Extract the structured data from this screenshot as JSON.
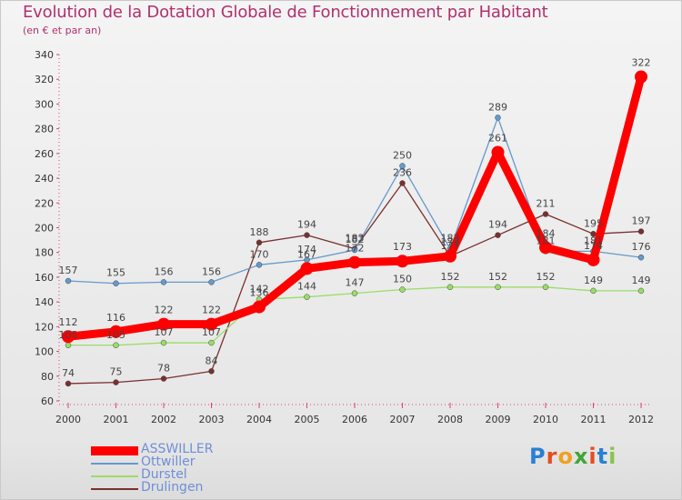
{
  "header": {
    "title": "Evolution de la Dotation Globale de Fonctionnement par Habitant",
    "subtitle": "(en € et par an)"
  },
  "chart_data": {
    "type": "line",
    "title": "Evolution de la Dotation Globale de Fonctionnement par Habitant",
    "subtitle": "(en € et par an)",
    "xlabel": "",
    "ylabel": "",
    "ylim": [
      60,
      340
    ],
    "yticks": [
      60,
      80,
      100,
      120,
      140,
      160,
      180,
      200,
      220,
      240,
      260,
      280,
      300,
      320,
      340
    ],
    "grid": false,
    "legend_position": "bottom-left",
    "categories": [
      "2000",
      "2001",
      "2002",
      "2003",
      "2004",
      "2005",
      "2006",
      "2007",
      "2008",
      "2009",
      "2010",
      "2011",
      "2012"
    ],
    "series": [
      {
        "name": "ASSWILLER",
        "color": "#ff0000",
        "values": [
          112,
          116,
          122,
          122,
          136,
          167,
          172,
          173,
          177,
          261,
          184,
          174,
          322
        ]
      },
      {
        "name": "Ottwiller",
        "color": "#6699cc",
        "values": [
          157,
          155,
          156,
          156,
          170,
          174,
          182,
          250,
          183,
          289,
          181,
          181,
          176
        ]
      },
      {
        "name": "Durstel",
        "color": "#99dd66",
        "values": [
          105,
          105,
          107,
          107,
          142,
          144,
          147,
          150,
          152,
          152,
          152,
          149,
          149
        ]
      },
      {
        "name": "Drulingen",
        "color": "#7a2f2f",
        "values": [
          74,
          75,
          78,
          84,
          188,
          194,
          183,
          236,
          177,
          194,
          211,
          195,
          197
        ]
      }
    ],
    "data_labels": {
      "ASSWILLER": [
        "112",
        "116",
        "122",
        "122",
        "136",
        "167",
        "172",
        "173",
        "177",
        "261",
        "184",
        "174",
        "322"
      ],
      "Ottwiller": [
        "157",
        "155",
        "156",
        "156",
        "170",
        "174",
        "182",
        "250",
        "183",
        "289",
        "181",
        "181",
        "176"
      ],
      "Durstel": [
        "105",
        "105",
        "107",
        "107",
        "142",
        "144",
        "147",
        "150",
        "152",
        "152",
        "152",
        "149",
        "149"
      ],
      "Drulingen": [
        "74",
        "75",
        "78",
        "84",
        "188",
        "194",
        "183",
        "236",
        "177",
        "194",
        "211",
        "195",
        "197"
      ]
    }
  },
  "legend": {
    "items": [
      {
        "label": "ASSWILLER",
        "color": "#ff0000"
      },
      {
        "label": "Ottwiller",
        "color": "#6699cc"
      },
      {
        "label": "Durstel",
        "color": "#99dd66"
      },
      {
        "label": "Drulingen",
        "color": "#7a2f2f"
      }
    ]
  },
  "logo": {
    "text": "Proxiti"
  }
}
